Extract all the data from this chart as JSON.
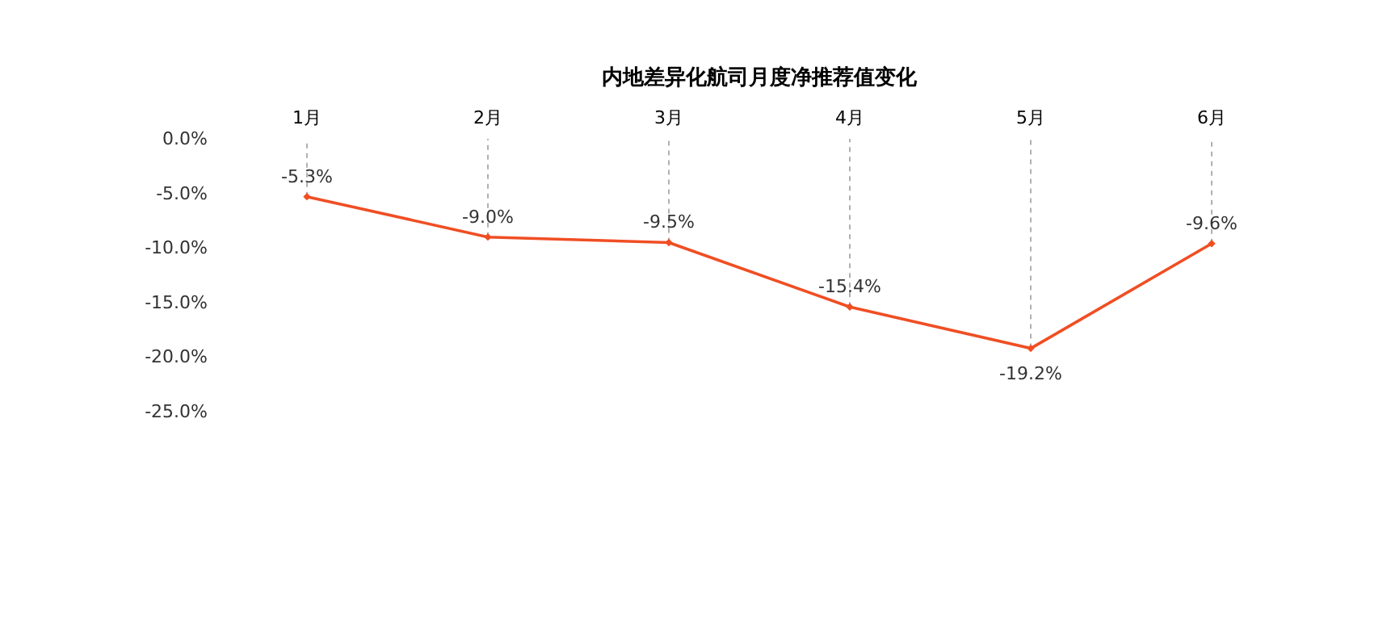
{
  "chart_data": {
    "type": "line",
    "title": "内地差异化航司月度净推荐值变化",
    "categories": [
      "1月",
      "2月",
      "3月",
      "4月",
      "5月",
      "6月"
    ],
    "series": [
      {
        "color": "#f04e23",
        "values": [
          -5.3,
          -9.0,
          -9.5,
          -15.4,
          -19.2,
          -9.6
        ],
        "value_labels": [
          "-5.3%",
          "-9.0%",
          "-9.5%",
          "-15.4%",
          "-19.2%",
          "-9.6%"
        ]
      }
    ],
    "ylim": [
      -25,
      0
    ],
    "yticks": [
      {
        "value": 0,
        "label": "0.0%"
      },
      {
        "value": -5,
        "label": "-5.0%"
      },
      {
        "value": -10,
        "label": "-10.0%"
      },
      {
        "value": -15,
        "label": "-15.0%"
      },
      {
        "value": -20,
        "label": "-20.0%"
      },
      {
        "value": -25,
        "label": "-25.0%"
      }
    ],
    "grid": "x",
    "marker": "diamond",
    "line_style": "solid"
  }
}
